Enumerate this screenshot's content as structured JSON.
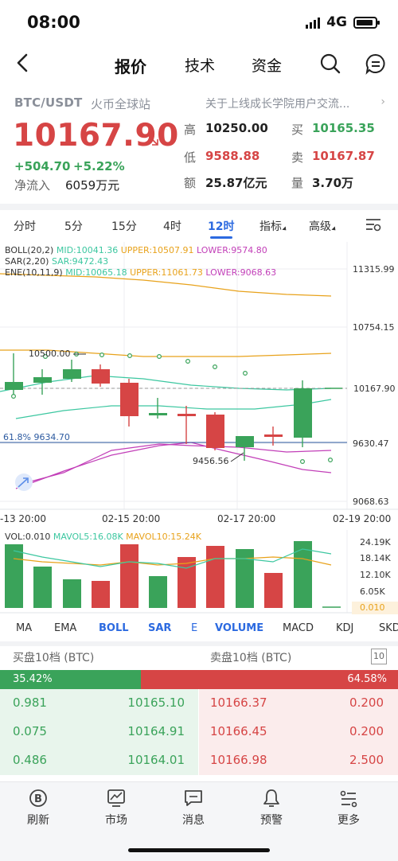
{
  "status_bar": {
    "time": "08:00",
    "network": "4G"
  },
  "nav": {
    "tabs": [
      "报价",
      "技术",
      "资金"
    ],
    "active_tab": "报价",
    "icons": [
      "back-arrow-icon",
      "search-icon",
      "message-icon"
    ]
  },
  "header": {
    "pair": "BTC/USDT",
    "exchange": "火币全球站",
    "notice": "关于上线成长学院用户交流...",
    "price": "10167.90",
    "change_abs": "+504.70",
    "change_pct": "+5.22%",
    "netflow_label": "净流入",
    "netflow_value": "6059万元",
    "stats": {
      "high_label": "高",
      "high": "10250.00",
      "low_label": "低",
      "low": "9588.88",
      "amount_label": "额",
      "amount": "25.87亿元",
      "buy_label": "买",
      "buy": "10165.35",
      "sell_label": "卖",
      "sell": "10167.87",
      "volume_label": "量",
      "volume": "3.70万"
    },
    "colors": {
      "up": "#d64545",
      "down": "#3aa35a"
    }
  },
  "periods": {
    "items": [
      "分时",
      "5分",
      "15分",
      "4时",
      "12时",
      "指标",
      "高级"
    ],
    "active": "12时",
    "settings_icon": "chart-settings-icon"
  },
  "chart": {
    "boll_line": "BOLL(20,2) MID:10041.36 UPPER:10507.91 LOWER:9574.80",
    "boll_parts": {
      "name": "BOLL(20,2)",
      "mid": "MID:10041.36",
      "upper": "UPPER:10507.91",
      "lower": "LOWER:9574.80"
    },
    "sar_parts": {
      "name": "SAR(2,20)",
      "sar": "SAR:9472.43"
    },
    "ene_parts": {
      "name": "ENE(10,11,9)",
      "mid": "MID:10065.18",
      "upper": "UPPER:11061.73",
      "lower": "LOWER:9068.63"
    },
    "y_labels": [
      "11315.99",
      "10754.15",
      "10167.90",
      "9630.47",
      "9068.63"
    ],
    "annotations": {
      "high_mark": "10500.00",
      "low_mark": "9456.56",
      "fib": "61.8% 9634.70"
    },
    "x_labels": [
      "-13 20:00",
      "02-15 20:00",
      "02-17 20:00",
      "02-19 20:00"
    ]
  },
  "volume": {
    "header": {
      "vol": "VOL:0.010",
      "ma5": "MAVOL5:16.08K",
      "ma10": "MAVOL10:15.24K"
    },
    "y_labels": [
      "24.19K",
      "18.14K",
      "12.10K",
      "6.05K",
      "0.010"
    ]
  },
  "indicators": {
    "items": [
      "MA",
      "EMA",
      "BOLL",
      "SAR",
      "E",
      "VOLUME",
      "MACD",
      "KDJ",
      "SKD"
    ],
    "active": [
      "BOLL",
      "SAR",
      "VOLUME"
    ]
  },
  "order_book": {
    "bid_title": "买盘10档 (BTC)",
    "ask_title": "卖盘10档 (BTC)",
    "depth": "10",
    "bid_pct": "35.42%",
    "ask_pct": "64.58%",
    "bid_ratio": 0.3542,
    "rows": [
      {
        "bid_qty": "0.981",
        "bid_price": "10165.10",
        "ask_price": "10166.37",
        "ask_qty": "0.200"
      },
      {
        "bid_qty": "0.075",
        "bid_price": "10164.91",
        "ask_price": "10166.45",
        "ask_qty": "0.200"
      },
      {
        "bid_qty": "0.486",
        "bid_price": "10164.01",
        "ask_price": "10166.98",
        "ask_qty": "2.500"
      }
    ]
  },
  "bottom_nav": {
    "items": [
      {
        "label": "刷新",
        "icon": "refresh-icon"
      },
      {
        "label": "市场",
        "icon": "market-icon"
      },
      {
        "label": "消息",
        "icon": "message-icon"
      },
      {
        "label": "预警",
        "icon": "bell-icon"
      },
      {
        "label": "更多",
        "icon": "more-icon"
      }
    ]
  }
}
